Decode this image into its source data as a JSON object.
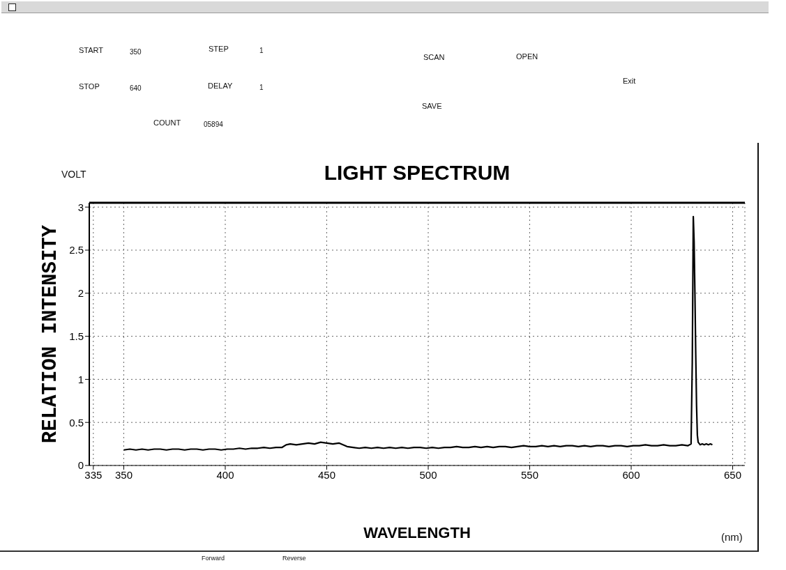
{
  "chart_data": {
    "type": "line",
    "title": "LIGHT SPECTRUM",
    "xlabel": "WAVELENGTH",
    "ylabel": "RELATION INTENSITY",
    "annotations": [
      "VOLT",
      "(nm)",
      "START",
      "350",
      "STEP",
      "1",
      "STOP",
      "640",
      "DELAY",
      "1",
      "COUNT",
      "05894",
      "SCAN",
      "OPEN",
      "SAVE",
      "Exit",
      "Forward",
      "Reverse"
    ],
    "x": [
      350,
      353,
      356,
      359,
      362,
      365,
      368,
      371,
      374,
      377,
      380,
      383,
      386,
      389,
      392,
      395,
      398,
      401,
      404,
      407,
      410,
      413,
      416,
      419,
      422,
      425,
      428,
      430,
      432,
      435,
      438,
      441,
      444,
      447,
      450,
      453,
      456,
      458,
      460,
      463,
      466,
      469,
      472,
      475,
      478,
      481,
      484,
      487,
      490,
      493,
      496,
      499,
      502,
      505,
      508,
      511,
      514,
      517,
      520,
      523,
      526,
      529,
      532,
      535,
      538,
      541,
      544,
      547,
      550,
      553,
      556,
      559,
      562,
      565,
      568,
      571,
      574,
      577,
      580,
      583,
      586,
      589,
      592,
      595,
      598,
      601,
      604,
      607,
      610,
      613,
      616,
      619,
      622,
      625,
      628,
      629.5,
      630.1,
      630.6,
      631,
      631.4,
      631.8,
      632.2,
      632.6,
      633,
      634,
      635,
      636,
      637,
      638,
      639,
      640
    ],
    "values": [
      0.18,
      0.19,
      0.18,
      0.19,
      0.18,
      0.19,
      0.19,
      0.18,
      0.19,
      0.19,
      0.18,
      0.19,
      0.19,
      0.18,
      0.19,
      0.19,
      0.18,
      0.19,
      0.19,
      0.2,
      0.19,
      0.2,
      0.2,
      0.21,
      0.2,
      0.21,
      0.21,
      0.24,
      0.25,
      0.24,
      0.25,
      0.26,
      0.25,
      0.27,
      0.26,
      0.25,
      0.26,
      0.24,
      0.22,
      0.21,
      0.2,
      0.21,
      0.2,
      0.21,
      0.2,
      0.21,
      0.2,
      0.21,
      0.2,
      0.21,
      0.21,
      0.2,
      0.21,
      0.2,
      0.21,
      0.21,
      0.22,
      0.21,
      0.21,
      0.22,
      0.21,
      0.22,
      0.21,
      0.22,
      0.22,
      0.21,
      0.22,
      0.23,
      0.22,
      0.22,
      0.23,
      0.22,
      0.23,
      0.22,
      0.23,
      0.23,
      0.22,
      0.23,
      0.22,
      0.23,
      0.23,
      0.22,
      0.23,
      0.23,
      0.22,
      0.23,
      0.23,
      0.24,
      0.23,
      0.23,
      0.24,
      0.23,
      0.23,
      0.24,
      0.23,
      0.25,
      1.2,
      2.89,
      2.6,
      2.0,
      1.3,
      0.7,
      0.35,
      0.27,
      0.24,
      0.25,
      0.24,
      0.25,
      0.24,
      0.25,
      0.24
    ],
    "color": "#000000",
    "xlim": [
      333,
      656
    ],
    "xticks": [
      335,
      350,
      400,
      450,
      500,
      550,
      600,
      650
    ],
    "ylim": [
      0,
      3.05
    ],
    "yticks": [
      0,
      0.5,
      1,
      1.5,
      2,
      2.5,
      3
    ],
    "grid": true,
    "marker": "none",
    "line_style": "solid"
  }
}
